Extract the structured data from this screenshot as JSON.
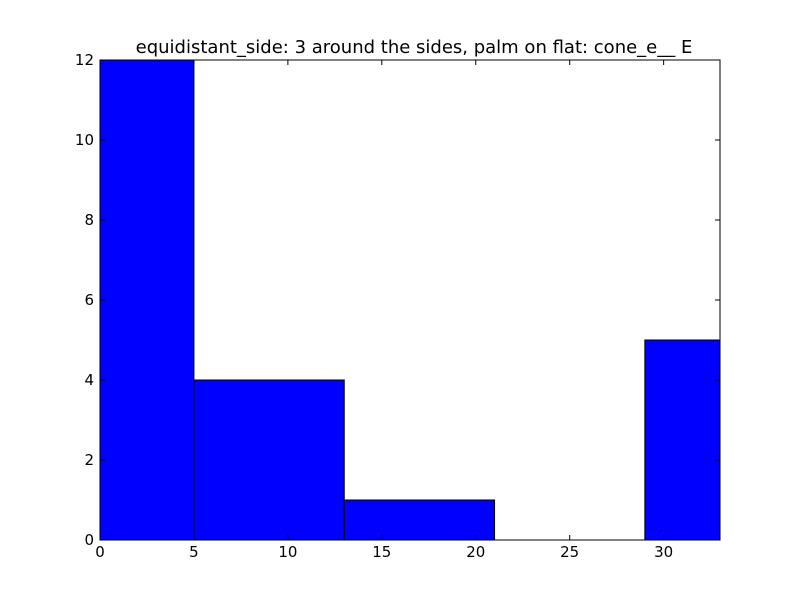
{
  "chart_data": {
    "type": "bar",
    "title": "equidistant_side: 3 around the sides, palm on flat: cone_e__ E",
    "xlabel": "",
    "ylabel": "",
    "xlim": [
      0,
      33
    ],
    "ylim": [
      0,
      12
    ],
    "x_ticks": [
      0,
      5,
      10,
      15,
      20,
      25,
      30
    ],
    "y_ticks": [
      0,
      2,
      4,
      6,
      8,
      10,
      12
    ],
    "bins": [
      {
        "x0": 0,
        "x1": 5,
        "value": 12
      },
      {
        "x0": 5,
        "x1": 13,
        "value": 4
      },
      {
        "x0": 13,
        "x1": 21,
        "value": 1
      },
      {
        "x0": 21,
        "x1": 29,
        "value": 0
      },
      {
        "x0": 29,
        "x1": 37,
        "value": 5
      }
    ],
    "bar_color": "#0000ff",
    "edge_color": "#000000",
    "grid": false,
    "legend": "none"
  }
}
